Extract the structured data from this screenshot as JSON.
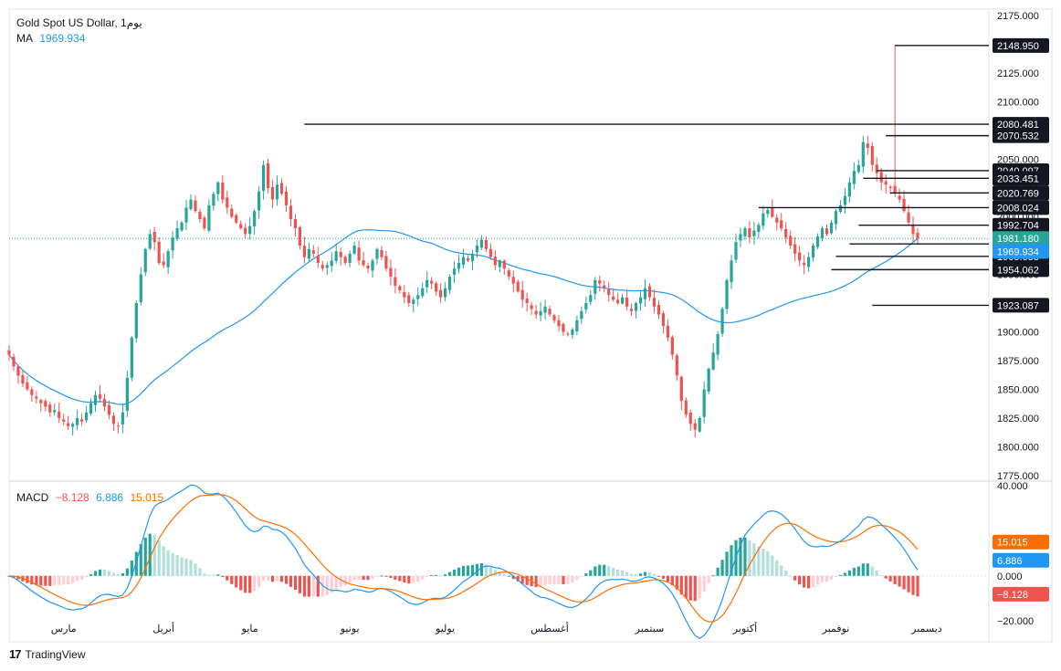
{
  "header": {
    "symbol": "Gold Spot US Dollar, 1يوم",
    "ma_label": "MA",
    "ma_value": "1969.934",
    "macd_label": "MACD",
    "macd_hist": "−8.128",
    "macd_line": "6.886",
    "macd_signal": "15.015"
  },
  "brand": {
    "logo": "17",
    "name": "TradingView"
  },
  "colors": {
    "up": "#26a69a",
    "down": "#ef5350",
    "ma": "#2196f3",
    "signal": "#ff6d00",
    "hist_up_light": "#b2dfdb",
    "hist_down_light": "#ffcdd2"
  },
  "chart_data": [
    {
      "type": "candlestick",
      "title": "Gold Spot US Dollar, 1يوم",
      "ylim": [
        1775,
        2175
      ],
      "y_ticks": [
        1775,
        1800,
        1825,
        1850,
        1875,
        1900,
        1925,
        1950,
        1975,
        2000,
        2025,
        2050,
        2075,
        2100,
        2125,
        2150,
        2175
      ],
      "y_tick_labels": [
        "1775.000",
        "1800.000",
        "1825.000",
        "1850.000",
        "1875.000",
        "1900.000",
        "1925.000",
        "1950.000",
        "1975.000",
        "2000.000",
        "2025.000",
        "2050.000",
        "2075.000",
        "2100.000",
        "2125.000",
        "2150.000",
        "2175.000"
      ],
      "x_month_labels": [
        "مارس",
        "أبريل",
        "مايو",
        "يونيو",
        "يوليو",
        "أغسطس",
        "سبتمبر",
        "أكتوبر",
        "نوفمبر",
        "ديسمبر"
      ],
      "x_month_index": [
        12,
        34,
        53,
        75,
        96,
        119,
        141,
        162,
        182,
        202
      ],
      "close_path": [
        1880,
        1870,
        1862,
        1855,
        1850,
        1845,
        1842,
        1838,
        1835,
        1830,
        1832,
        1825,
        1822,
        1818,
        1820,
        1825,
        1822,
        1830,
        1838,
        1845,
        1842,
        1835,
        1828,
        1820,
        1818,
        1830,
        1860,
        1895,
        1925,
        1950,
        1972,
        1985,
        1978,
        1960,
        1958,
        1970,
        1982,
        1990,
        1995,
        2008,
        2015,
        2005,
        1998,
        1990,
        2010,
        2020,
        2030,
        2015,
        2008,
        2000,
        1995,
        1990,
        1985,
        1992,
        2005,
        2022,
        2045,
        2025,
        2015,
        2028,
        2020,
        2010,
        1998,
        1990,
        1975,
        1965,
        1972,
        1968,
        1960,
        1955,
        1958,
        1962,
        1970,
        1965,
        1960,
        1968,
        1975,
        1962,
        1958,
        1955,
        1962,
        1972,
        1965,
        1955,
        1948,
        1940,
        1936,
        1930,
        1925,
        1928,
        1932,
        1938,
        1945,
        1942,
        1935,
        1930,
        1938,
        1948,
        1955,
        1960,
        1965,
        1962,
        1968,
        1975,
        1980,
        1972,
        1965,
        1958,
        1962,
        1955,
        1948,
        1942,
        1935,
        1928,
        1925,
        1920,
        1915,
        1918,
        1922,
        1915,
        1910,
        1905,
        1900,
        1898,
        1902,
        1910,
        1918,
        1925,
        1932,
        1945,
        1942,
        1938,
        1932,
        1928,
        1925,
        1930,
        1922,
        1918,
        1925,
        1930,
        1938,
        1930,
        1922,
        1915,
        1905,
        1895,
        1880,
        1862,
        1840,
        1828,
        1820,
        1815,
        1825,
        1850,
        1868,
        1882,
        1898,
        1920,
        1945,
        1962,
        1978,
        1985,
        1990,
        1982,
        1988,
        1993,
        2003,
        2006,
        2000,
        1995,
        1990,
        1982,
        1975,
        1968,
        1962,
        1958,
        1965,
        1975,
        1983,
        1990,
        1985,
        1995,
        2005,
        2010,
        2018,
        2030,
        2040,
        2045,
        2065,
        2060,
        2045,
        2038,
        2030,
        2028,
        2025,
        2020,
        2015,
        2005,
        1995,
        1985,
        1981
      ],
      "last_close": 1981.18,
      "ma": {
        "label": "MA",
        "value": 1969.934
      },
      "horizontal_levels": [
        2148.95,
        2080.481,
        2070.532,
        2040.097,
        2033.451,
        2020.769,
        2008.024,
        1992.704,
        1976.462,
        1965.633,
        1954.062,
        1923.087
      ],
      "level_labels": [
        "2148.950",
        "2080.481",
        "2070.532",
        "2040.097",
        "2033.451",
        "2020.769",
        "2008.024",
        "1992.704",
        "1976.462",
        "1965.633",
        "1954.062",
        "1923.087"
      ],
      "last_label": "1981.180",
      "ma_label_value": "1969.934"
    },
    {
      "type": "macd",
      "ylim": [
        -28,
        42
      ],
      "y_ticks": [
        40,
        0,
        -20
      ],
      "y_tick_labels": [
        "40.000",
        "0.000",
        "−20.000"
      ],
      "macd_value": 6.886,
      "signal_value": 15.015,
      "hist_value": -8.128,
      "labels": {
        "signal": "15.015",
        "macd": "6.886",
        "hist": "−8.128"
      }
    }
  ]
}
